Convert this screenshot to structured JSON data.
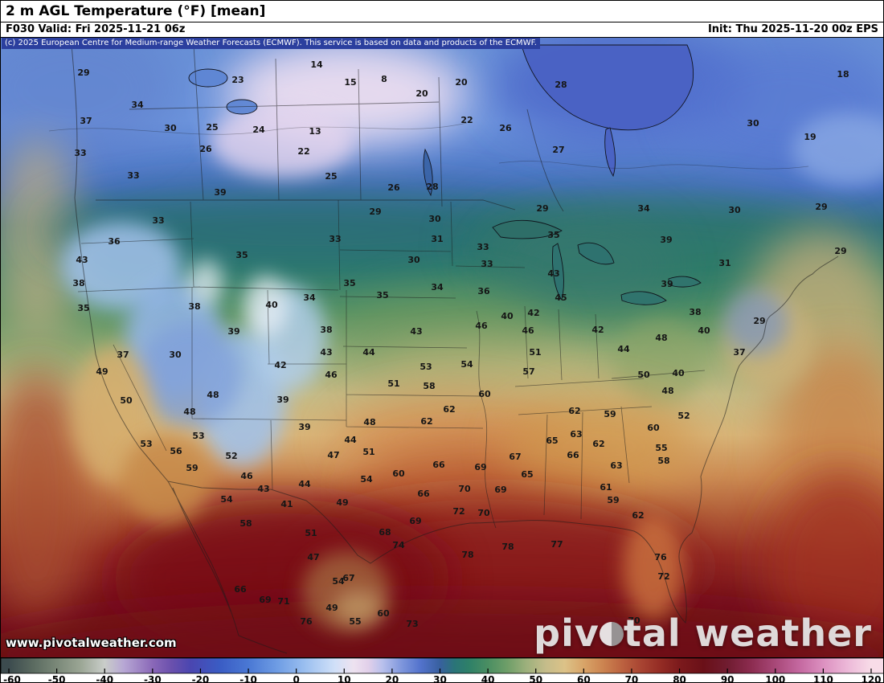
{
  "header": {
    "title": "2 m AGL Temperature (°F) [mean]",
    "forecast": "F030 Valid: Fri 2025-11-21 06z",
    "init": "Init: Thu 2025-11-20 00z EPS"
  },
  "copyright": "(c) 2025 European Centre for Medium-range Weather Forecasts (ECMWF). This service is based on data and products of the ECMWF.",
  "watermark": "www.pivotalweather.com",
  "logo": {
    "prefix": "piv",
    "o_icon": "half-circle-icon",
    "suffix": "tal weather"
  },
  "colorbar": {
    "unit": "°F",
    "min": -60,
    "max": 120,
    "ticks": [
      -60,
      -50,
      -40,
      -30,
      -20,
      -10,
      0,
      10,
      20,
      30,
      40,
      50,
      60,
      70,
      80,
      90,
      100,
      110,
      120
    ],
    "stops": [
      {
        "v": -60,
        "c": "#3c4b4e"
      },
      {
        "v": -55,
        "c": "#5a6a60"
      },
      {
        "v": -50,
        "c": "#7a8878"
      },
      {
        "v": -45,
        "c": "#9ba695"
      },
      {
        "v": -40,
        "c": "#c9cdc9"
      },
      {
        "v": -36,
        "c": "#b7a7d4"
      },
      {
        "v": -30,
        "c": "#8a68b8"
      },
      {
        "v": -26,
        "c": "#6a50ad"
      },
      {
        "v": -22,
        "c": "#4a46b0"
      },
      {
        "v": -16,
        "c": "#3a5cc4"
      },
      {
        "v": -10,
        "c": "#4a78d4"
      },
      {
        "v": -4,
        "c": "#6e9ce4"
      },
      {
        "v": 2,
        "c": "#9cc0f0"
      },
      {
        "v": 8,
        "c": "#d0e0f8"
      },
      {
        "v": 12,
        "c": "#eee2f0"
      },
      {
        "v": 15,
        "c": "#e2d0ea"
      },
      {
        "v": 18,
        "c": "#b8c0ec"
      },
      {
        "v": 22,
        "c": "#7e96dc"
      },
      {
        "v": 26,
        "c": "#5272cc"
      },
      {
        "v": 30,
        "c": "#38609e"
      },
      {
        "v": 33,
        "c": "#2a7478"
      },
      {
        "v": 36,
        "c": "#2e8068"
      },
      {
        "v": 40,
        "c": "#4a8e62"
      },
      {
        "v": 44,
        "c": "#6e9e68"
      },
      {
        "v": 48,
        "c": "#9cb07c"
      },
      {
        "v": 52,
        "c": "#c4bc8a"
      },
      {
        "v": 56,
        "c": "#dcc288"
      },
      {
        "v": 60,
        "c": "#d8a468"
      },
      {
        "v": 64,
        "c": "#cc8450"
      },
      {
        "v": 68,
        "c": "#bc6240"
      },
      {
        "v": 72,
        "c": "#a84432"
      },
      {
        "v": 76,
        "c": "#942c24"
      },
      {
        "v": 80,
        "c": "#7c1a1c"
      },
      {
        "v": 85,
        "c": "#6a1018"
      },
      {
        "v": 90,
        "c": "#701c30"
      },
      {
        "v": 95,
        "c": "#8c2c50"
      },
      {
        "v": 100,
        "c": "#a84878"
      },
      {
        "v": 105,
        "c": "#c468a0"
      },
      {
        "v": 110,
        "c": "#dc90c0"
      },
      {
        "v": 115,
        "c": "#ecb8d8"
      },
      {
        "v": 120,
        "c": "#f8dce8"
      }
    ]
  },
  "chart_data": {
    "type": "heatmap",
    "title": "2 m AGL Temperature (°F) [mean]",
    "units": "°F",
    "value_range": [
      -60,
      120
    ],
    "labels": [
      [
        29,
        103,
        89
      ],
      [
        23,
        295,
        98
      ],
      [
        14,
        393,
        79
      ],
      [
        15,
        435,
        101
      ],
      [
        8,
        477,
        97
      ],
      [
        20,
        524,
        115
      ],
      [
        20,
        573,
        101
      ],
      [
        28,
        697,
        104
      ],
      [
        18,
        1048,
        91
      ],
      [
        34,
        170,
        129
      ],
      [
        37,
        106,
        149
      ],
      [
        30,
        211,
        158
      ],
      [
        25,
        263,
        157
      ],
      [
        24,
        321,
        160
      ],
      [
        13,
        391,
        162
      ],
      [
        22,
        580,
        148
      ],
      [
        26,
        628,
        158
      ],
      [
        30,
        936,
        152
      ],
      [
        19,
        1007,
        169
      ],
      [
        33,
        99,
        189
      ],
      [
        26,
        255,
        184
      ],
      [
        22,
        377,
        187
      ],
      [
        27,
        694,
        185
      ],
      [
        33,
        165,
        217
      ],
      [
        25,
        411,
        218
      ],
      [
        39,
        273,
        238
      ],
      [
        26,
        489,
        232
      ],
      [
        28,
        537,
        231
      ],
      [
        29,
        466,
        262
      ],
      [
        30,
        540,
        271
      ],
      [
        29,
        674,
        258
      ],
      [
        34,
        800,
        258
      ],
      [
        30,
        913,
        260
      ],
      [
        29,
        1021,
        256
      ],
      [
        33,
        196,
        273
      ],
      [
        36,
        141,
        299
      ],
      [
        35,
        300,
        316
      ],
      [
        33,
        416,
        296
      ],
      [
        31,
        543,
        296
      ],
      [
        33,
        600,
        306
      ],
      [
        35,
        688,
        291
      ],
      [
        39,
        828,
        297
      ],
      [
        31,
        901,
        326
      ],
      [
        29,
        1045,
        311
      ],
      [
        43,
        101,
        322
      ],
      [
        30,
        514,
        322
      ],
      [
        33,
        605,
        327
      ],
      [
        43,
        688,
        339
      ],
      [
        39,
        829,
        352
      ],
      [
        38,
        97,
        351
      ],
      [
        35,
        103,
        382
      ],
      [
        38,
        241,
        380
      ],
      [
        34,
        384,
        369
      ],
      [
        40,
        337,
        378
      ],
      [
        35,
        434,
        351
      ],
      [
        35,
        475,
        366
      ],
      [
        34,
        543,
        356
      ],
      [
        36,
        601,
        361
      ],
      [
        45,
        697,
        369
      ],
      [
        39,
        290,
        411
      ],
      [
        38,
        405,
        409
      ],
      [
        43,
        517,
        411
      ],
      [
        46,
        598,
        404
      ],
      [
        40,
        630,
        392
      ],
      [
        42,
        663,
        388
      ],
      [
        46,
        656,
        410
      ],
      [
        42,
        743,
        409
      ],
      [
        48,
        822,
        419
      ],
      [
        40,
        875,
        410
      ],
      [
        38,
        864,
        387
      ],
      [
        29,
        944,
        398
      ],
      [
        37,
        152,
        440
      ],
      [
        30,
        217,
        440
      ],
      [
        43,
        405,
        437
      ],
      [
        44,
        458,
        437
      ],
      [
        42,
        348,
        453
      ],
      [
        46,
        411,
        465
      ],
      [
        51,
        665,
        437
      ],
      [
        44,
        775,
        433
      ],
      [
        37,
        919,
        437
      ],
      [
        53,
        529,
        455
      ],
      [
        54,
        580,
        452
      ],
      [
        57,
        657,
        461
      ],
      [
        50,
        800,
        465
      ],
      [
        40,
        843,
        463
      ],
      [
        51,
        489,
        476
      ],
      [
        58,
        533,
        479
      ],
      [
        48,
        830,
        485
      ],
      [
        49,
        126,
        461
      ],
      [
        50,
        156,
        497
      ],
      [
        48,
        264,
        490
      ],
      [
        48,
        235,
        511
      ],
      [
        39,
        351,
        496
      ],
      [
        60,
        602,
        489
      ],
      [
        62,
        558,
        508
      ],
      [
        62,
        714,
        510
      ],
      [
        59,
        758,
        514
      ],
      [
        52,
        850,
        516
      ],
      [
        62,
        530,
        523
      ],
      [
        48,
        459,
        524
      ],
      [
        39,
        378,
        530
      ],
      [
        60,
        812,
        531
      ],
      [
        63,
        716,
        539
      ],
      [
        53,
        246,
        541
      ],
      [
        44,
        435,
        546
      ],
      [
        65,
        686,
        547
      ],
      [
        62,
        744,
        551
      ],
      [
        53,
        181,
        551
      ],
      [
        51,
        458,
        561
      ],
      [
        55,
        822,
        556
      ],
      [
        56,
        218,
        560
      ],
      [
        66,
        712,
        565
      ],
      [
        47,
        414,
        565
      ],
      [
        52,
        287,
        566
      ],
      [
        67,
        640,
        567
      ],
      [
        58,
        825,
        572
      ],
      [
        66,
        545,
        577
      ],
      [
        63,
        766,
        578
      ],
      [
        69,
        597,
        580
      ],
      [
        59,
        238,
        581
      ],
      [
        60,
        495,
        588
      ],
      [
        65,
        655,
        589
      ],
      [
        46,
        306,
        591
      ],
      [
        54,
        455,
        595
      ],
      [
        61,
        753,
        605
      ],
      [
        44,
        378,
        601
      ],
      [
        70,
        577,
        607
      ],
      [
        69,
        622,
        608
      ],
      [
        43,
        327,
        607
      ],
      [
        62,
        793,
        640
      ],
      [
        59,
        762,
        621
      ],
      [
        66,
        526,
        613
      ],
      [
        54,
        281,
        620
      ],
      [
        41,
        356,
        626
      ],
      [
        49,
        425,
        624
      ],
      [
        72,
        570,
        635
      ],
      [
        70,
        601,
        637
      ],
      [
        69,
        516,
        647
      ],
      [
        58,
        305,
        650
      ],
      [
        68,
        478,
        661
      ],
      [
        51,
        386,
        662
      ],
      [
        74,
        495,
        677
      ],
      [
        77,
        692,
        676
      ],
      [
        78,
        631,
        679
      ],
      [
        76,
        821,
        692
      ],
      [
        78,
        581,
        689
      ],
      [
        47,
        389,
        692
      ],
      [
        67,
        433,
        718
      ],
      [
        72,
        825,
        716
      ],
      [
        54,
        420,
        722
      ],
      [
        66,
        298,
        732
      ],
      [
        71,
        352,
        747
      ],
      [
        69,
        329,
        745
      ],
      [
        49,
        412,
        755
      ],
      [
        55,
        441,
        772
      ],
      [
        60,
        476,
        762
      ],
      [
        73,
        512,
        775
      ],
      [
        76,
        380,
        772
      ],
      [
        70,
        788,
        771
      ]
    ]
  }
}
